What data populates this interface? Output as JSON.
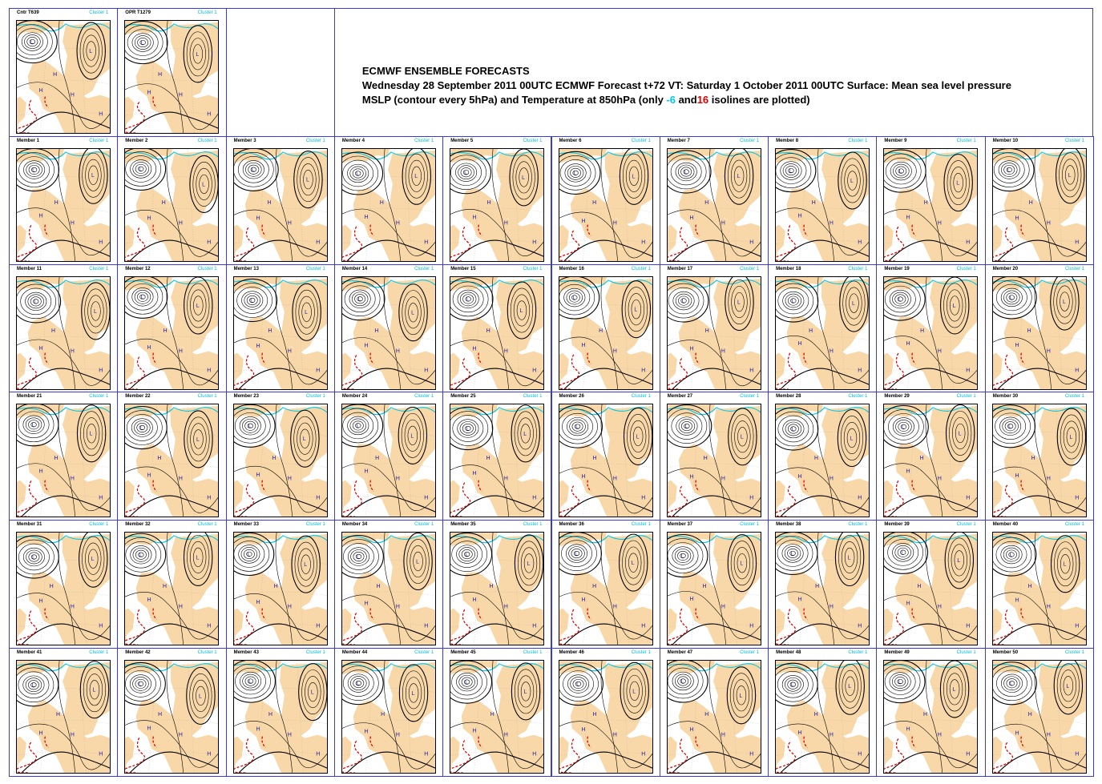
{
  "header": {
    "title": "ECMWF ENSEMBLE FORECASTS",
    "line2": "Wednesday 28 September 2011 00UTC ECMWF  Forecast t+72 VT: Saturday 1 October 2011 00UTC Surface: Mean sea level pressure",
    "line3_a": "MSLP (contour every 5hPa)   and Temperature at 850hPa (only ",
    "line3_cold": "-6",
    "line3_mid": " and",
    "line3_warm": "16",
    "line3_b": " isolines are plotted)"
  },
  "colors": {
    "frame": "#3b3bd0",
    "land": "#f8d8a8",
    "cold_isoline": "#00c8e8",
    "warm_isoline": "#e00000",
    "isobar": "#000000",
    "pressure_labels": "#1a1aa0"
  },
  "panels": [
    {
      "label": "Cntr T639",
      "cluster": "Cluster 1"
    },
    {
      "label": "OPR T1279",
      "cluster": "Cluster 1"
    },
    {
      "label": "Member 1",
      "cluster": "Cluster 1"
    },
    {
      "label": "Member 2",
      "cluster": "Cluster 1"
    },
    {
      "label": "Member 3",
      "cluster": "Cluster 1"
    },
    {
      "label": "Member 4",
      "cluster": "Cluster 1"
    },
    {
      "label": "Member 5",
      "cluster": "Cluster 1"
    },
    {
      "label": "Member 6",
      "cluster": "Cluster 1"
    },
    {
      "label": "Member 7",
      "cluster": "Cluster 1"
    },
    {
      "label": "Member 8",
      "cluster": "Cluster 1"
    },
    {
      "label": "Member 9",
      "cluster": "Cluster 1"
    },
    {
      "label": "Member 10",
      "cluster": "Cluster 1"
    },
    {
      "label": "Member 11",
      "cluster": "Cluster 1"
    },
    {
      "label": "Member 12",
      "cluster": "Cluster 1"
    },
    {
      "label": "Member 13",
      "cluster": "Cluster 1"
    },
    {
      "label": "Member 14",
      "cluster": "Cluster 1"
    },
    {
      "label": "Member 15",
      "cluster": "Cluster 1"
    },
    {
      "label": "Member 16",
      "cluster": "Cluster 1"
    },
    {
      "label": "Member 17",
      "cluster": "Cluster 1"
    },
    {
      "label": "Member 18",
      "cluster": "Cluster 1"
    },
    {
      "label": "Member 19",
      "cluster": "Cluster 1"
    },
    {
      "label": "Member 20",
      "cluster": "Cluster 1"
    },
    {
      "label": "Member 21",
      "cluster": "Cluster 1"
    },
    {
      "label": "Member 22",
      "cluster": "Cluster 1"
    },
    {
      "label": "Member 23",
      "cluster": "Cluster 1"
    },
    {
      "label": "Member 24",
      "cluster": "Cluster 1"
    },
    {
      "label": "Member 25",
      "cluster": "Cluster 1"
    },
    {
      "label": "Member 26",
      "cluster": "Cluster 1"
    },
    {
      "label": "Member 27",
      "cluster": "Cluster 1"
    },
    {
      "label": "Member 28",
      "cluster": "Cluster 1"
    },
    {
      "label": "Member 29",
      "cluster": "Cluster 1"
    },
    {
      "label": "Member 30",
      "cluster": "Cluster 1"
    },
    {
      "label": "Member 31",
      "cluster": "Cluster 1"
    },
    {
      "label": "Member 32",
      "cluster": "Cluster 1"
    },
    {
      "label": "Member 33",
      "cluster": "Cluster 1"
    },
    {
      "label": "Member 34",
      "cluster": "Cluster 1"
    },
    {
      "label": "Member 35",
      "cluster": "Cluster 1"
    },
    {
      "label": "Member 36",
      "cluster": "Cluster 1"
    },
    {
      "label": "Member 37",
      "cluster": "Cluster 1"
    },
    {
      "label": "Member 38",
      "cluster": "Cluster 1"
    },
    {
      "label": "Member 39",
      "cluster": "Cluster 1"
    },
    {
      "label": "Member 40",
      "cluster": "Cluster 1"
    },
    {
      "label": "Member 41",
      "cluster": "Cluster 1"
    },
    {
      "label": "Member 42",
      "cluster": "Cluster 1"
    },
    {
      "label": "Member 43",
      "cluster": "Cluster 1"
    },
    {
      "label": "Member 44",
      "cluster": "Cluster 1"
    },
    {
      "label": "Member 45",
      "cluster": "Cluster 1"
    },
    {
      "label": "Member 46",
      "cluster": "Cluster 1"
    },
    {
      "label": "Member 47",
      "cluster": "Cluster 1"
    },
    {
      "label": "Member 48",
      "cluster": "Cluster 1"
    },
    {
      "label": "Member 49",
      "cluster": "Cluster 1"
    },
    {
      "label": "Member 50",
      "cluster": "Cluster 1"
    }
  ]
}
